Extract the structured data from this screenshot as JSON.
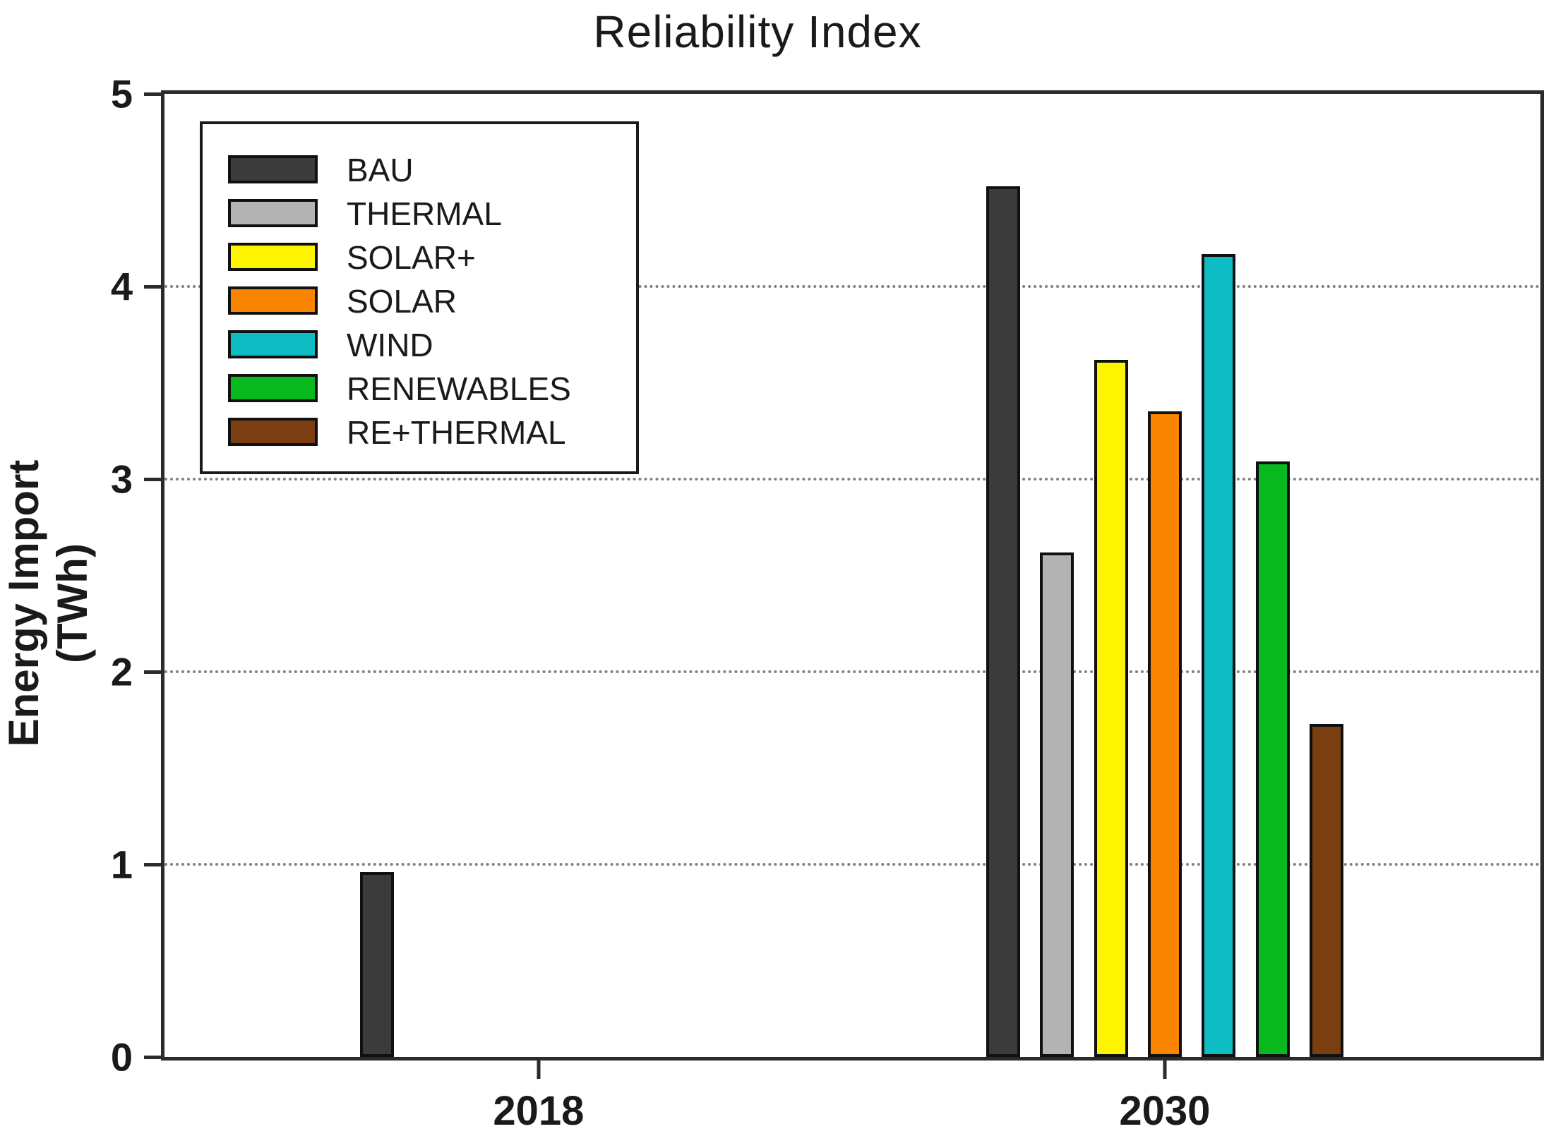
{
  "chart_data": {
    "type": "bar",
    "title": "Reliability Index",
    "xlabel": "",
    "ylabel": "Energy Import (TWh)",
    "ylim": [
      0,
      5
    ],
    "y_ticks": [
      "0",
      "1",
      "2",
      "3",
      "4",
      "5"
    ],
    "gridlines": {
      "horizontal_dotted_at": [
        1,
        2,
        3,
        4
      ]
    },
    "categories": [
      "2018",
      "2030"
    ],
    "series": [
      {
        "name": "BAU",
        "color": "#3b3b3b",
        "values": [
          0.96,
          4.52
        ]
      },
      {
        "name": "THERMAL",
        "color": "#b3b3b3",
        "values": [
          0,
          2.62
        ]
      },
      {
        "name": "SOLAR+",
        "color": "#fdf400",
        "values": [
          0,
          3.62
        ]
      },
      {
        "name": "SOLAR",
        "color": "#f88400",
        "values": [
          0,
          3.35
        ]
      },
      {
        "name": "WIND",
        "color": "#0ebdc3",
        "values": [
          0,
          4.17
        ]
      },
      {
        "name": "RENEWABLES",
        "color": "#07b81e",
        "values": [
          0,
          3.09
        ]
      },
      {
        "name": "RE+THERMAL",
        "color": "#7a3e10",
        "values": [
          0,
          1.73
        ]
      }
    ],
    "legend_position": "upper left",
    "note": "In 2018 only the BAU bar is drawn; all other series are zero/not shown.",
    "colors": {
      "axis_frame": "#2b2b2b",
      "gridline": "#808080",
      "bar_outline": "#101010",
      "text": "#1a1a1a",
      "background": "#ffffff"
    }
  }
}
